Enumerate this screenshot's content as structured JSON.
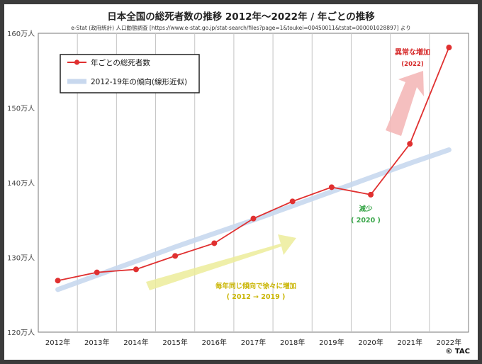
{
  "chart_data": {
    "type": "line",
    "title": "日本全国の総死者数の推移 2012年～2022年 / 年ごとの推移",
    "subtitle": "e-Stat (政府統計) 人口動態調査 [https://www.e-stat.go.jp/stat-search/files?page=1&toukei=00450011&tstat=000001028897] より",
    "categories": [
      "2012年",
      "2013年",
      "2014年",
      "2015年",
      "2016年",
      "2017年",
      "2018年",
      "2019年",
      "2020年",
      "2021年",
      "2022年"
    ],
    "series": [
      {
        "name": "年ごとの総死者数",
        "color": "#e03030",
        "values": [
          126.9,
          128.0,
          128.4,
          130.2,
          131.9,
          135.2,
          137.5,
          139.4,
          138.4,
          145.2,
          158.1
        ]
      },
      {
        "name": "2012-19年の傾向(線形近似)",
        "color": "#c8d8ee",
        "values": [
          125.7,
          127.6,
          129.5,
          131.4,
          133.2,
          135.0,
          136.9,
          138.8,
          140.7,
          142.6,
          144.4
        ]
      }
    ],
    "y_ticks": [
      "120万人",
      "130万人",
      "140万人",
      "150万人",
      "160万人"
    ],
    "ylim": [
      120,
      160
    ],
    "grid": "vertical",
    "legend_position": "top-left",
    "annotations": {
      "surge": "異常な増加",
      "surge_year": "(2022)",
      "decrease": "減少",
      "decrease_year": "( 2020 )",
      "trend": "毎年同じ傾向で徐々に増加",
      "trend_years": "( 2012 → 2019 )"
    },
    "colors": {
      "surge_arrow": "#f4b8b8",
      "trend_arrow": "#ecec9a",
      "background_frame": "#3b3b3b"
    }
  },
  "copyright": "© TAC"
}
